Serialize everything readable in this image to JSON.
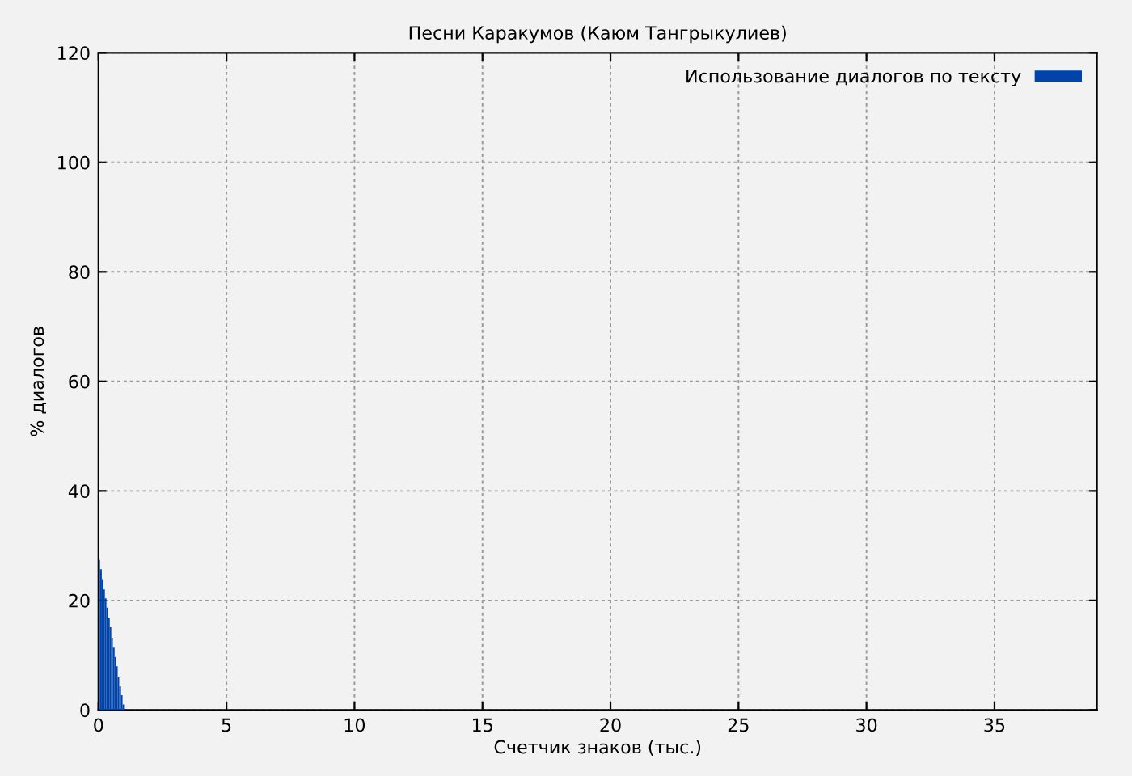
{
  "chart_data": {
    "type": "histogram",
    "title": "Песни Каракумов (Каюм Тангрыкулиев)",
    "xlabel": "Счетчик знаков (тыс.)",
    "ylabel": "% диалогов",
    "bins": [
      0,
      0.06,
      0.13,
      0.19,
      0.25,
      0.31,
      0.38,
      0.44,
      0.5,
      0.56,
      0.63,
      0.69,
      0.75,
      0.81,
      0.88,
      0.94,
      1.0
    ],
    "series": [
      {
        "name": "Использование диалогов по тексту",
        "color": "#0044aa",
        "values": [
          27.4,
          25.7,
          23.9,
          22.0,
          20.4,
          18.7,
          16.9,
          15.1,
          13.2,
          11.4,
          9.7,
          8.0,
          6.1,
          4.3,
          2.7,
          1.0
        ]
      }
    ],
    "xlim": [
      0,
      39
    ],
    "ylim": [
      0,
      120
    ],
    "xticks": [
      0,
      5,
      10,
      15,
      20,
      25,
      30,
      35
    ],
    "yticks": [
      0,
      20,
      40,
      60,
      80,
      100,
      120
    ],
    "grid": true,
    "legend": "top right"
  }
}
